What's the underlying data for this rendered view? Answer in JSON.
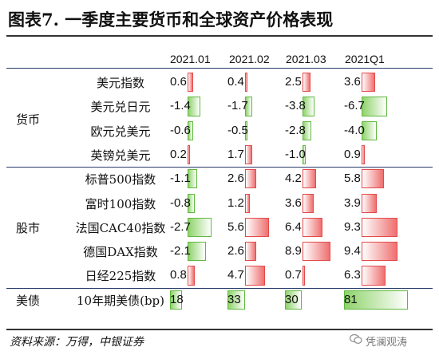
{
  "title": "图表7. 一季度主要货币和全球资产价格表现",
  "columns": [
    "2021.01",
    "2021.02",
    "2021.03",
    "2021Q1"
  ],
  "groups": [
    {
      "label": "货币",
      "rows": [
        {
          "label": "美元指数",
          "values": [
            "0.6",
            "0.4",
            "2.5",
            "3.6"
          ]
        },
        {
          "label": "美元兑日元",
          "values": [
            "-1.4",
            "-1.7",
            "-3.8",
            "-6.7"
          ]
        },
        {
          "label": "欧元兑美元",
          "values": [
            "-0.6",
            "-0.5",
            "-2.8",
            "-4.0"
          ]
        },
        {
          "label": "英镑兑美元",
          "values": [
            "0.2",
            "1.7",
            "-1.0",
            "0.9"
          ]
        }
      ]
    },
    {
      "label": "股市",
      "rows": [
        {
          "label": "标普500指数",
          "values": [
            "-1.1",
            "2.6",
            "4.2",
            "5.8"
          ]
        },
        {
          "label": "富时100指数",
          "values": [
            "-0.8",
            "1.2",
            "3.6",
            "3.9"
          ]
        },
        {
          "label": "法国CAC40指数",
          "values": [
            "-2.7",
            "5.6",
            "6.4",
            "9.3"
          ]
        },
        {
          "label": "德国DAX指数",
          "values": [
            "-2.1",
            "2.6",
            "8.9",
            "9.4"
          ]
        },
        {
          "label": "日经225指数",
          "values": [
            "0.8",
            "4.7",
            "0.7",
            "6.3"
          ]
        }
      ]
    },
    {
      "label": "美债",
      "rows": [
        {
          "label": "10年期美债(bp)",
          "values": [
            "18",
            "33",
            "30",
            "81"
          ]
        }
      ]
    }
  ],
  "source": "资料来源：万得，中银证券",
  "watermark": "凭澜观涛",
  "colors": {
    "positive": "#ef6f6f",
    "negative": "#8fd36b",
    "bond": "#8fd36b"
  },
  "icons": {
    "watermark": "wechat-icon"
  }
}
